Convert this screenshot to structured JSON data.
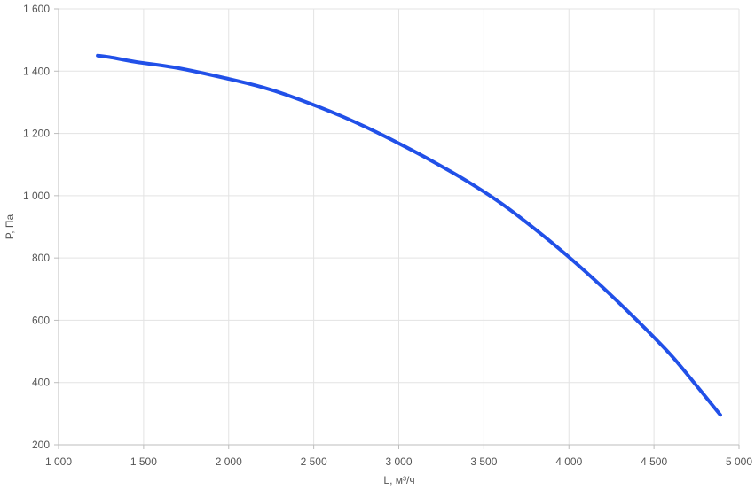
{
  "chart_data": {
    "type": "line",
    "xlabel": "L, м³/ч",
    "ylabel": "P, Па",
    "xlim": [
      1000,
      5000
    ],
    "ylim": [
      200,
      1600
    ],
    "xticks": [
      1000,
      1500,
      2000,
      2500,
      3000,
      3500,
      4000,
      4500,
      5000
    ],
    "yticks": [
      200,
      400,
      600,
      800,
      1000,
      1200,
      1400,
      1600
    ],
    "xtick_labels": [
      "1 000",
      "1 500",
      "2 000",
      "2 500",
      "3 000",
      "3 500",
      "4 000",
      "4 500",
      "5 000"
    ],
    "ytick_labels": [
      "200",
      "400",
      "600",
      "800",
      "1 000",
      "1 200",
      "1 400",
      "1 600"
    ],
    "grid": true,
    "series": [
      {
        "color": "#2150e8",
        "x": [
          1230,
          1300,
          1450,
          1700,
          2000,
          2200,
          2350,
          2600,
          2800,
          3000,
          3200,
          3400,
          3600,
          3800,
          4000,
          4200,
          4400,
          4600,
          4750,
          4890
        ],
        "y": [
          1450,
          1445,
          1430,
          1410,
          1375,
          1348,
          1322,
          1270,
          1222,
          1168,
          1110,
          1047,
          976,
          893,
          803,
          705,
          600,
          488,
          390,
          296
        ]
      }
    ]
  }
}
